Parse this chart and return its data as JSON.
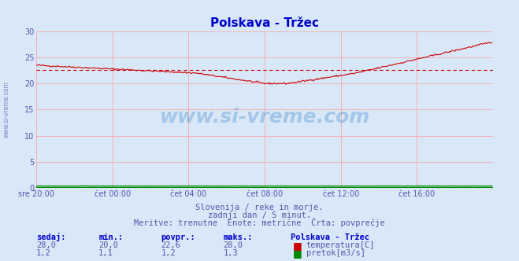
{
  "title": "Polskava - Tržec",
  "bg_color": "#d8e8f8",
  "plot_bg_color": "#d8e8f8",
  "grid_color": "#ff9999",
  "temp_color": "#cc0000",
  "pretok_color": "#008800",
  "avg_line_color": "#cc0000",
  "avg_value": 22.6,
  "temp_min": 20.0,
  "temp_max": 28.0,
  "ylim": [
    0,
    30
  ],
  "yticks": [
    0,
    5,
    10,
    15,
    20,
    25,
    30
  ],
  "xlabel_color": "#5555aa",
  "text_color": "#5555aa",
  "title_color": "#0000cc",
  "watermark": "www.si-vreme.com",
  "subtitle1": "Slovenija / reke in morje.",
  "subtitle2": "zadnji dan / 5 minut.",
  "subtitle3": "Meritve: trenutne  Enote: metrične  Črta: povprečje",
  "xtick_labels": [
    "sre 20:00",
    "čet 00:00",
    "čet 04:00",
    "čet 08:00",
    "čet 12:00",
    "čet 16:00"
  ],
  "xtick_positions": [
    0,
    72,
    144,
    216,
    288,
    360
  ],
  "total_points": 432,
  "legend_title": "Polskava - Tržec",
  "legend_temp": "temperatura[C]",
  "legend_pretok": "pretok[m3/s]",
  "table_headers": [
    "sedaj:",
    "min.:",
    "povpr.:",
    "maks.:"
  ],
  "temp_row": [
    "28,0",
    "20,0",
    "22,6",
    "28,0"
  ],
  "pretok_row": [
    "1,2",
    "1,1",
    "1,2",
    "1,3"
  ]
}
